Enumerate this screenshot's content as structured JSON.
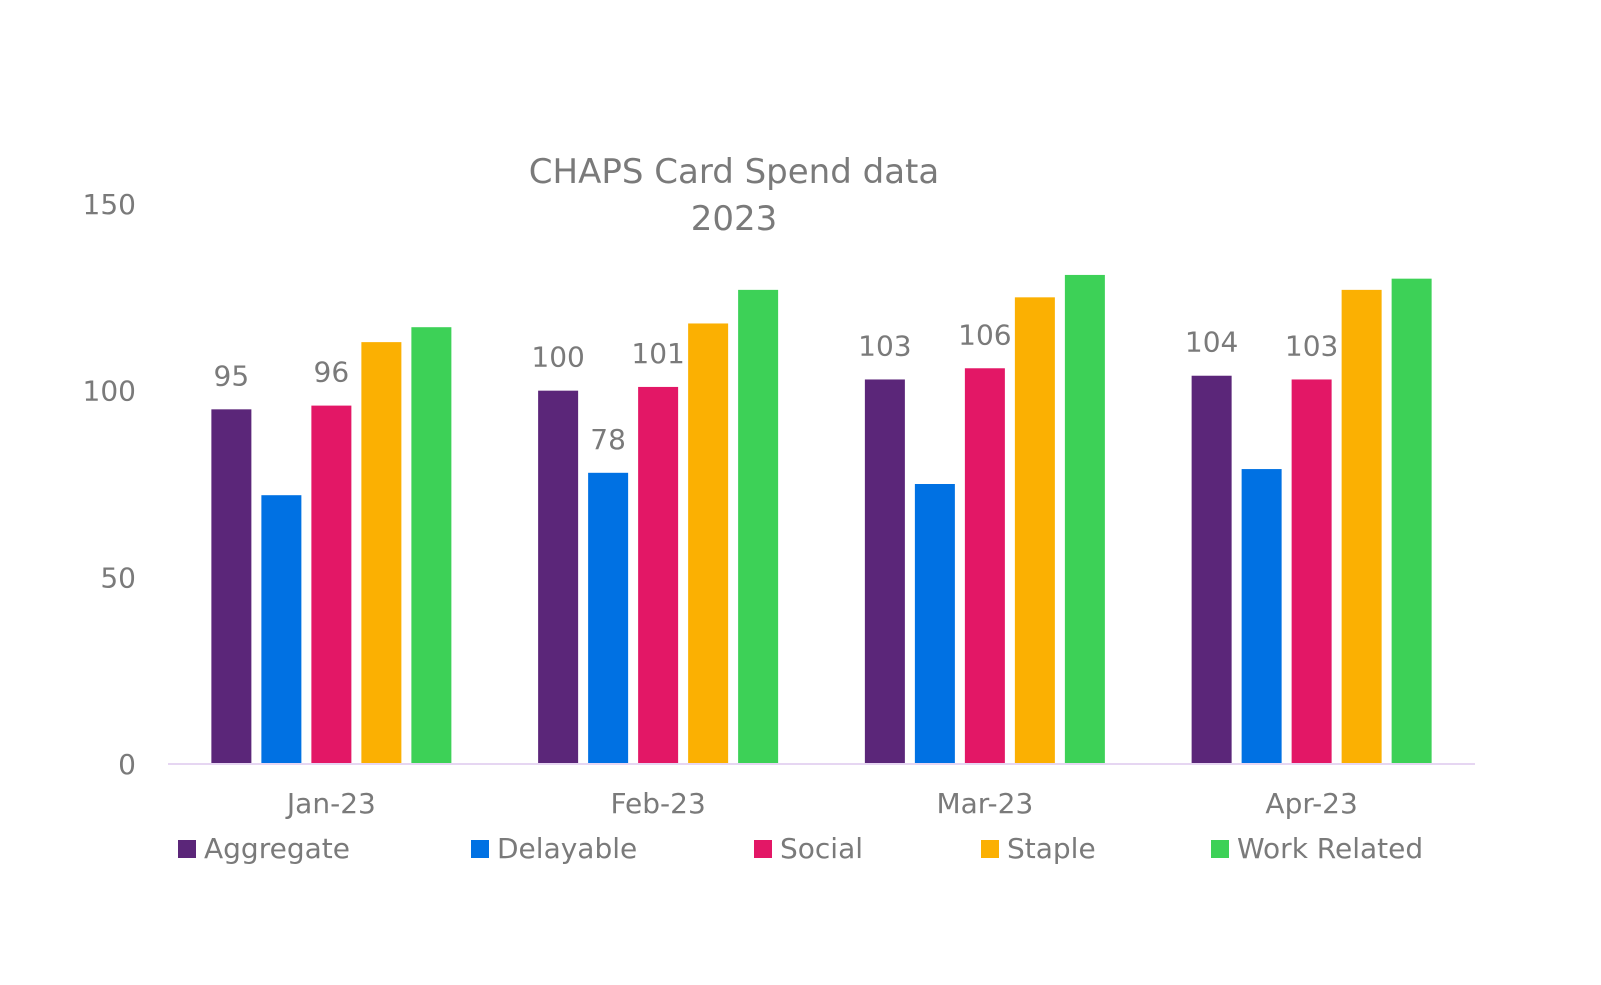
{
  "chart_data": {
    "type": "bar",
    "title": "CHAPS Card Spend data",
    "subtitle": "2023",
    "xlabel": "",
    "ylabel": "",
    "categories": [
      "Jan-23",
      "Feb-23",
      "Mar-23",
      "Apr-23"
    ],
    "ylim": [
      0,
      150
    ],
    "yticks": [
      0,
      50,
      100,
      150
    ],
    "grid": false,
    "legend_position": "bottom",
    "series": [
      {
        "name": "Aggregate",
        "color": "#5b2679",
        "values": [
          95,
          100,
          103,
          104
        ],
        "labels": [
          "95",
          "100",
          "103",
          "104"
        ]
      },
      {
        "name": "Delayable",
        "color": "#0071e3",
        "values": [
          72,
          78,
          75,
          79
        ],
        "labels": [
          "",
          "78",
          "",
          ""
        ]
      },
      {
        "name": "Social",
        "color": "#e31766",
        "values": [
          96,
          101,
          106,
          103
        ],
        "labels": [
          "96",
          "101",
          "106",
          "103"
        ]
      },
      {
        "name": "Staple",
        "color": "#fbb002",
        "values": [
          113,
          118,
          125,
          127
        ],
        "labels": [
          "",
          "",
          "",
          ""
        ]
      },
      {
        "name": "Work Related",
        "color": "#3dd157",
        "values": [
          117,
          127,
          131,
          130
        ],
        "labels": [
          "",
          "",
          "",
          ""
        ]
      }
    ]
  }
}
